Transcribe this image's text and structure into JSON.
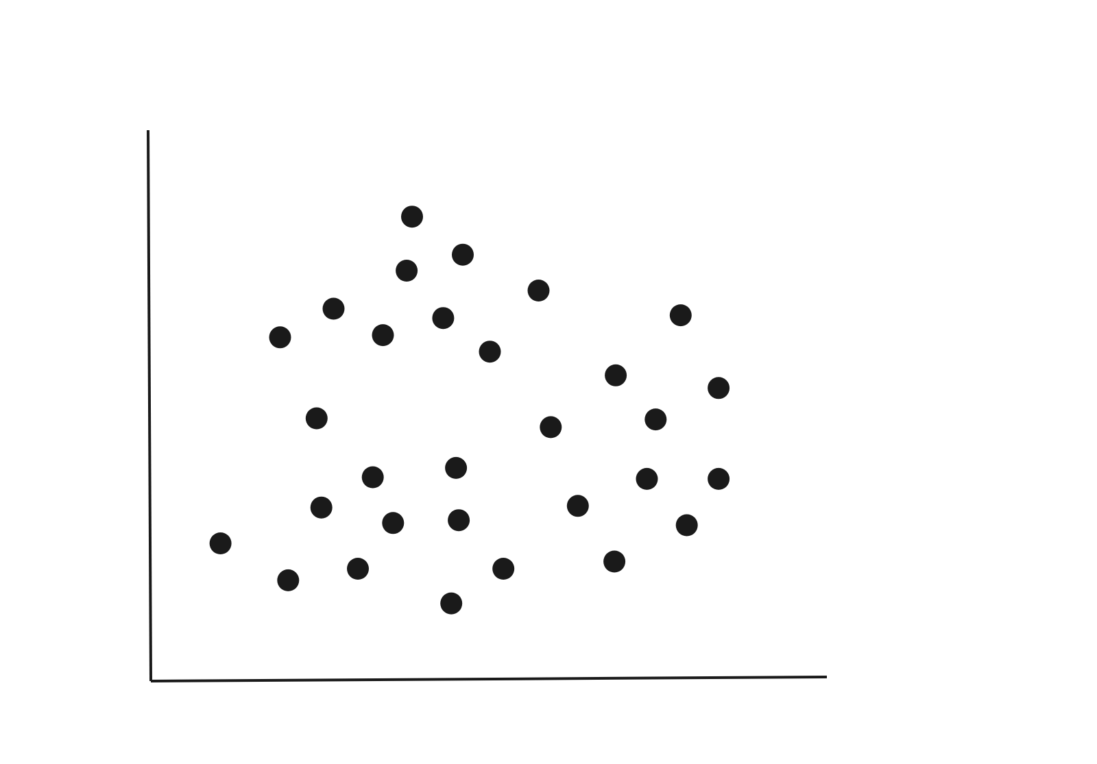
{
  "chart_data": {
    "type": "scatter",
    "title": "",
    "xlabel": "",
    "ylabel": "",
    "xlim": [
      0,
      100
    ],
    "ylim": [
      0,
      100
    ],
    "grid": false,
    "legend": "none",
    "colors": {
      "point": "#1a1a1a",
      "axis": "#1a1a1a",
      "background": "#ffffff"
    },
    "series": [
      {
        "points": [
          {
            "x": 38.7,
            "y": 84.3
          },
          {
            "x": 46.2,
            "y": 77.4
          },
          {
            "x": 37.9,
            "y": 74.5
          },
          {
            "x": 57.4,
            "y": 70.9
          },
          {
            "x": 27.1,
            "y": 67.6
          },
          {
            "x": 43.3,
            "y": 65.9
          },
          {
            "x": 19.2,
            "y": 62.4
          },
          {
            "x": 34.4,
            "y": 62.8
          },
          {
            "x": 50.2,
            "y": 59.8
          },
          {
            "x": 78.4,
            "y": 66.4
          },
          {
            "x": 68.8,
            "y": 55.5
          },
          {
            "x": 84.0,
            "y": 53.2
          },
          {
            "x": 24.6,
            "y": 47.7
          },
          {
            "x": 59.2,
            "y": 46.1
          },
          {
            "x": 74.7,
            "y": 47.5
          },
          {
            "x": 45.2,
            "y": 38.7
          },
          {
            "x": 32.9,
            "y": 37.0
          },
          {
            "x": 73.4,
            "y": 36.7
          },
          {
            "x": 84.0,
            "y": 36.7
          },
          {
            "x": 25.3,
            "y": 31.5
          },
          {
            "x": 35.9,
            "y": 28.7
          },
          {
            "x": 45.6,
            "y": 29.2
          },
          {
            "x": 63.2,
            "y": 31.8
          },
          {
            "x": 79.3,
            "y": 28.3
          },
          {
            "x": 10.4,
            "y": 25.0
          },
          {
            "x": 20.4,
            "y": 18.3
          },
          {
            "x": 30.7,
            "y": 20.4
          },
          {
            "x": 52.2,
            "y": 20.4
          },
          {
            "x": 68.6,
            "y": 21.7
          },
          {
            "x": 44.5,
            "y": 14.1
          }
        ]
      }
    ]
  }
}
